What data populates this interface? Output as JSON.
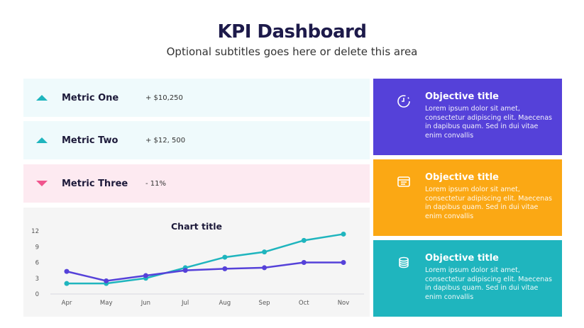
{
  "header": {
    "title": "KPI Dashboard",
    "subtitle": "Optional subtitles goes here or delete this area"
  },
  "metrics": [
    {
      "label": "Metric One",
      "value": "+ $10,250",
      "trend": "up",
      "bg": "#effafc"
    },
    {
      "label": "Metric Two",
      "value": "+ $12, 500",
      "trend": "up",
      "bg": "#effafc"
    },
    {
      "label": "Metric Three",
      "value": "- 11%",
      "trend": "down",
      "bg": "#fdeaf1"
    }
  ],
  "objectives": [
    {
      "title": "Objective title",
      "body": "Lorem ipsum dolor sit amet, consectetur adipiscing elit. Maecenas in dapibus quam. Sed in dui vitae enim convallis",
      "color": "#5541d9",
      "icon": "timer-icon"
    },
    {
      "title": "Objective title",
      "body": "Lorem ipsum dolor sit amet, consectetur adipiscing elit. Maecenas in dapibus quam. Sed in dui vitae enim convallis",
      "color": "#fba814",
      "icon": "list-card-icon"
    },
    {
      "title": "Objective title",
      "body": "Lorem ipsum dolor sit amet, consectetur adipiscing elit. Maecenas in dapibus quam. Sed in dui vitae enim convallis",
      "color": "#1fb5be",
      "icon": "coins-icon"
    }
  ],
  "chart_data": {
    "type": "line",
    "title": "Chart title",
    "categories": [
      "Apr",
      "May",
      "Jun",
      "Jul",
      "Aug",
      "Sep",
      "Oct",
      "Nov"
    ],
    "yticks": [
      0,
      3,
      6,
      9,
      12
    ],
    "ylim": [
      0,
      12
    ],
    "grid": false,
    "legend": "none",
    "series": [
      {
        "values": [
          2,
          2,
          3,
          5,
          7,
          8,
          10.2,
          11.4
        ],
        "color": "#1fb5be"
      },
      {
        "values": [
          4.3,
          2.5,
          3.5,
          4.5,
          4.8,
          5,
          6,
          6
        ],
        "color": "#5541d9"
      }
    ]
  }
}
